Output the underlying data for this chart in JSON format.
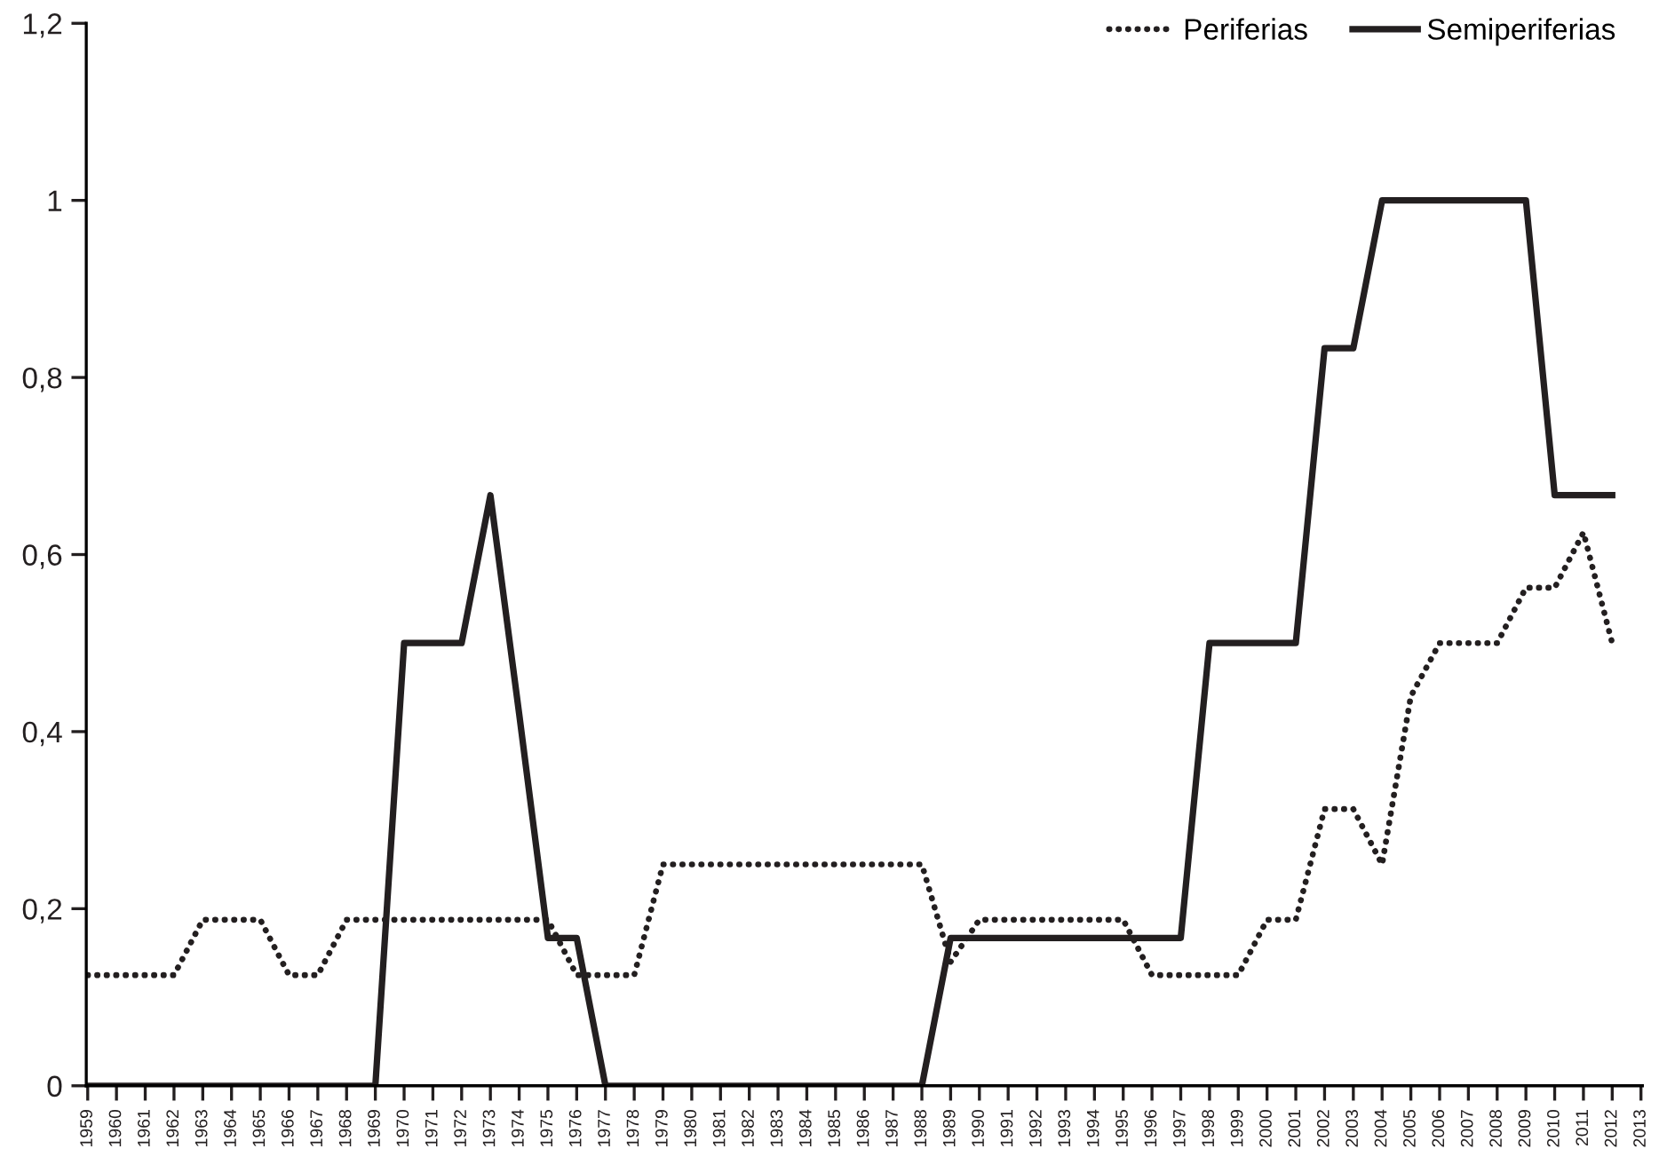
{
  "chart_data": {
    "type": "line",
    "categories": [
      "1959",
      "1960",
      "1961",
      "1962",
      "1963",
      "1964",
      "1965",
      "1966",
      "1967",
      "1968",
      "1969",
      "1970",
      "1971",
      "1972",
      "1973",
      "1974",
      "1975",
      "1976",
      "1977",
      "1978",
      "1979",
      "1980",
      "1981",
      "1982",
      "1983",
      "1984",
      "1985",
      "1986",
      "1987",
      "1988",
      "1989",
      "1990",
      "1991",
      "1992",
      "1993",
      "1994",
      "1995",
      "1996",
      "1997",
      "1998",
      "1999",
      "2000",
      "2001",
      "2002",
      "2003",
      "2004",
      "2005",
      "2006",
      "2007",
      "2008",
      "2009",
      "2010",
      "2011",
      "2012",
      "2013"
    ],
    "series": [
      {
        "name": "Periferias",
        "color": "#231f20",
        "line_style": "dotted",
        "values": [
          0.125,
          0.125,
          0.125,
          0.125,
          0.1875,
          0.1875,
          0.1875,
          0.125,
          0.125,
          0.1875,
          0.1875,
          0.1875,
          0.1875,
          0.1875,
          0.1875,
          0.1875,
          0.1875,
          0.125,
          0.125,
          0.125,
          0.25,
          0.25,
          0.25,
          0.25,
          0.25,
          0.25,
          0.25,
          0.25,
          0.25,
          0.25,
          0.14,
          0.1875,
          0.1875,
          0.1875,
          0.1875,
          0.1875,
          0.1875,
          0.125,
          0.125,
          0.125,
          0.125,
          0.1875,
          0.1875,
          0.3125,
          0.3125,
          0.25,
          0.44,
          0.5,
          0.5,
          0.5,
          0.5625,
          0.5625,
          0.625,
          0.5,
          null
        ]
      },
      {
        "name": "Semiperiferias",
        "color": "#231f20",
        "line_style": "solid",
        "values": [
          0,
          0,
          0,
          0,
          0,
          0,
          0,
          0,
          0,
          0,
          0,
          0.5,
          0.5,
          0.5,
          0.667,
          0.42,
          0.167,
          0.167,
          0,
          0,
          0,
          0,
          0,
          0,
          0,
          0,
          0,
          0,
          0,
          0,
          0.167,
          0.167,
          0.167,
          0.167,
          0.167,
          0.167,
          0.167,
          0.167,
          0.167,
          0.5,
          0.5,
          0.5,
          0.5,
          0.833,
          0.833,
          1,
          1,
          1,
          1,
          1,
          1,
          0.667,
          0.667,
          0.667,
          null
        ]
      }
    ],
    "ylim": [
      0,
      1.2
    ],
    "yticks": [
      {
        "value": 0,
        "label": "0"
      },
      {
        "value": 0.2,
        "label": "0,2"
      },
      {
        "value": 0.4,
        "label": "0,4"
      },
      {
        "value": 0.6,
        "label": "0,6"
      },
      {
        "value": 0.8,
        "label": "0,8"
      },
      {
        "value": 1,
        "label": "1"
      },
      {
        "value": 1.2,
        "label": "1,2"
      }
    ],
    "grid": false,
    "legend": "top right",
    "marker": "none"
  }
}
